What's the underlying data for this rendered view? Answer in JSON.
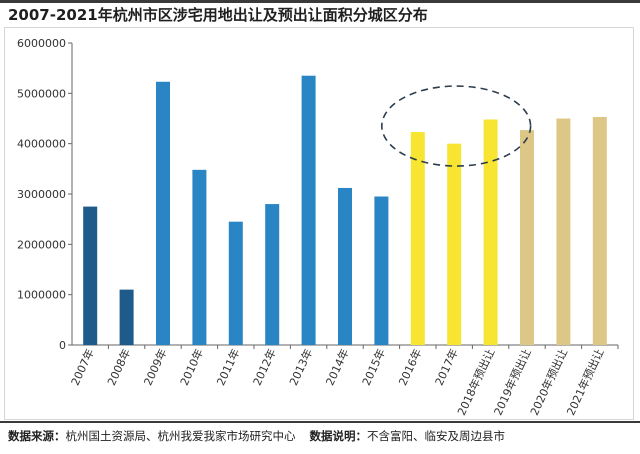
{
  "title": "2007-2021年杭州市区涉宅用地出让及预出让面积分城区分布",
  "footer": {
    "source_label": "数据来源：",
    "source_text": "杭州国土资源局、杭州我爱我家市场研究中心",
    "note_label": "数据说明：",
    "note_text": "不含富阳、临安及周边县市"
  },
  "colors": {
    "blue_dark": "#1e5a8a",
    "blue": "#2a85c4",
    "yellow": "#f7e531",
    "tan": "#dcc786",
    "axis": "#666666",
    "ellipse": "#2d3d4d"
  },
  "chart_data": {
    "type": "bar",
    "categories": [
      "2007年",
      "2008年",
      "2009年",
      "2010年",
      "2011年",
      "2012年",
      "2013年",
      "2014年",
      "2015年",
      "2016年",
      "2017年",
      "2018年预出让",
      "2019年预出让",
      "2020年预出让",
      "2021年预出让"
    ],
    "values": [
      2750000,
      1100000,
      5230000,
      3480000,
      2450000,
      2800000,
      5350000,
      3120000,
      2950000,
      4230000,
      4000000,
      4480000,
      4270000,
      4500000,
      4530000
    ],
    "bar_colors": [
      "blue_dark",
      "blue_dark",
      "blue",
      "blue",
      "blue",
      "blue",
      "blue",
      "blue",
      "blue",
      "yellow",
      "yellow",
      "yellow",
      "tan",
      "tan",
      "tan"
    ],
    "y_ticks": [
      "0",
      "1000000",
      "2000000",
      "3000000",
      "4000000",
      "5000000",
      "6000000"
    ],
    "ylim": [
      0,
      6000000
    ],
    "grid": false,
    "highlight": "dashed ellipse around 2016年–2018年预出让"
  }
}
